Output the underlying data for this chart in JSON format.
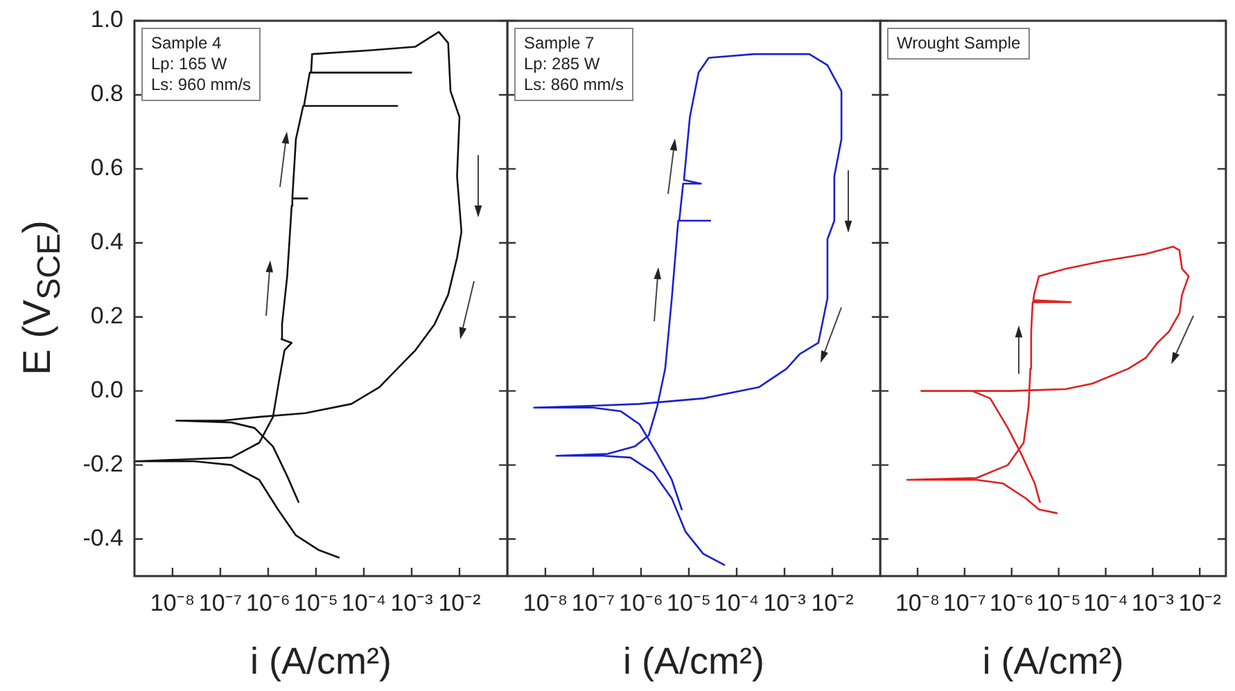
{
  "chart_data": [
    {
      "type": "line",
      "ylabel": "E (V$_{SCE}$)",
      "xlabel": "i (A/cm²)",
      "annotations": [
        "Sample 4",
        "Lp: 165 W",
        "Ls: 960 mm/s"
      ],
      "log": "x",
      "legend": false,
      "grid": false,
      "marker": "none",
      "line_style": "solid",
      "xlim": [
        1.6e-09,
        0.1
      ],
      "ylim": [
        -0.5,
        1.0
      ],
      "xticks": [
        {
          "value": 1e-08,
          "label": "10⁻⁸"
        },
        {
          "value": 1e-07,
          "label": "10⁻⁷"
        },
        {
          "value": 1e-06,
          "label": "10⁻⁶"
        },
        {
          "value": 1e-05,
          "label": "10⁻⁵"
        },
        {
          "value": 0.0001,
          "label": "10⁻⁴"
        },
        {
          "value": 0.001,
          "label": "10⁻³"
        },
        {
          "value": 0.01,
          "label": "10⁻²"
        }
      ],
      "yticks": [
        {
          "value": -0.4,
          "label": "-0.4"
        },
        {
          "value": -0.2,
          "label": "-0.2"
        },
        {
          "value": 0,
          "label": "0.0"
        },
        {
          "value": 0.2,
          "label": "0.2"
        },
        {
          "value": 0.4,
          "label": "0.4"
        },
        {
          "value": 0.6,
          "label": "0.6"
        },
        {
          "value": 0.8,
          "label": "0.8"
        },
        {
          "value": 1.0,
          "label": "1.0"
        }
      ],
      "series": [
        {
          "color": "#111111",
          "x": [
            3e-05,
            1.15e-05,
            3.8e-06,
            1.6e-06,
            6.5e-07,
            1.7e-07,
            2.9e-08,
            1.7e-09,
            1.7e-07,
            6.5e-07,
            1.26e-06,
            1.7e-06,
            2.2e-06,
            3.1e-06,
            1.9e-06,
            1.95e-06,
            2.5e-06,
            3.1e-06,
            3.2e-06,
            6.6e-06,
            3.2e-06,
            3.8e-06,
            5.4e-06,
            0.0005,
            5.6e-06,
            7.4e-06,
            0.00098,
            7.9e-06,
            8.3e-06,
            0.00013,
            0.0012,
            0.0037,
            0.0058,
            0.0065,
            0.01,
            0.0089,
            0.011,
            0.0089,
            0.0058,
            0.003,
            0.0012,
            0.0005,
            0.00021,
            5.5e-05,
            5.9e-06,
            6.5e-07,
            1.1e-07,
            1.2e-08,
            1.7e-07,
            5.2e-07,
            1.26e-06,
            2.5e-06,
            4.3e-06
          ],
          "values": [
            -0.45,
            -0.43,
            -0.39,
            -0.32,
            -0.24,
            -0.2,
            -0.19,
            -0.19,
            -0.18,
            -0.14,
            -0.07,
            0.03,
            0.11,
            0.13,
            0.14,
            0.18,
            0.31,
            0.5,
            0.52,
            0.52,
            0.52,
            0.68,
            0.77,
            0.77,
            0.77,
            0.86,
            0.86,
            0.86,
            0.91,
            0.92,
            0.93,
            0.97,
            0.94,
            0.81,
            0.74,
            0.58,
            0.43,
            0.36,
            0.26,
            0.18,
            0.11,
            0.06,
            0.01,
            -0.035,
            -0.06,
            -0.07,
            -0.08,
            -0.08,
            -0.085,
            -0.1,
            -0.15,
            -0.23,
            -0.3
          ]
        }
      ]
    },
    {
      "type": "line",
      "xlabel": "i (A/cm²)",
      "annotations": [
        "Sample 7",
        "Lp: 285 W",
        "Ls: 860 mm/s"
      ],
      "log": "x",
      "legend": false,
      "grid": false,
      "marker": "none",
      "line_style": "solid",
      "tick_labels": "x",
      "xlim": [
        1.6e-09,
        0.1
      ],
      "ylim": [
        -0.5,
        1.0
      ],
      "xticks": [
        {
          "value": 1e-08,
          "label": "10⁻⁸"
        },
        {
          "value": 1e-07,
          "label": "10⁻⁷"
        },
        {
          "value": 1e-06,
          "label": "10⁻⁶"
        },
        {
          "value": 1e-05,
          "label": "10⁻⁵"
        },
        {
          "value": 0.0001,
          "label": "10⁻⁴"
        },
        {
          "value": 0.001,
          "label": "10⁻³"
        },
        {
          "value": 0.01,
          "label": "10⁻²"
        }
      ],
      "yticks": [
        {
          "value": -0.4,
          "label": null
        },
        {
          "value": -0.2,
          "label": null
        },
        {
          "value": 0,
          "label": null
        },
        {
          "value": 0.2,
          "label": null
        },
        {
          "value": 0.4,
          "label": null
        },
        {
          "value": 0.6,
          "label": null
        },
        {
          "value": 0.8,
          "label": null
        },
        {
          "value": 1.0,
          "label": null
        }
      ],
      "series": [
        {
          "color": "#1a22cc",
          "x": [
            5.5e-05,
            2e-05,
            8.5e-06,
            4.4e-06,
            1.8e-06,
            6e-07,
            1.6e-07,
            1.7e-08,
            2e-07,
            7.4e-07,
            1.45e-06,
            2.2e-06,
            3.2e-06,
            4.4e-06,
            6e-06,
            2.8e-05,
            6.3e-06,
            7.6e-06,
            1.8e-05,
            7.9e-06,
            1.05e-05,
            1.6e-05,
            2.6e-05,
            0.00023,
            0.0033,
            0.0079,
            0.0155,
            0.0155,
            0.011,
            0.011,
            0.0079,
            0.0079,
            0.0051,
            0.0021,
            0.0011,
            0.00029,
            2e-05,
            9.3e-07,
            1e-07,
            5.8e-09,
            1e-07,
            3.8e-07,
            9.3e-07,
            2.2e-06,
            4.4e-06,
            7.1e-06
          ],
          "values": [
            -0.47,
            -0.44,
            -0.38,
            -0.29,
            -0.22,
            -0.18,
            -0.175,
            -0.175,
            -0.17,
            -0.15,
            -0.12,
            -0.04,
            0.06,
            0.25,
            0.46,
            0.46,
            0.46,
            0.56,
            0.56,
            0.57,
            0.74,
            0.86,
            0.9,
            0.91,
            0.91,
            0.88,
            0.81,
            0.68,
            0.58,
            0.46,
            0.41,
            0.25,
            0.13,
            0.1,
            0.06,
            0.01,
            -0.02,
            -0.035,
            -0.04,
            -0.045,
            -0.045,
            -0.055,
            -0.09,
            -0.17,
            -0.24,
            -0.32
          ]
        }
      ]
    },
    {
      "type": "line",
      "xlabel": "i (A/cm²)",
      "annotations": [
        "Wrought Sample"
      ],
      "log": "x",
      "legend": false,
      "grid": false,
      "marker": "none",
      "line_style": "solid",
      "tick_labels": "x",
      "xlim": [
        1.6e-09,
        0.036
      ],
      "ylim": [
        -0.5,
        1.0
      ],
      "xticks": [
        {
          "value": 1e-08,
          "label": "10⁻⁸"
        },
        {
          "value": 1e-07,
          "label": "10⁻⁷"
        },
        {
          "value": 1e-06,
          "label": "10⁻⁶"
        },
        {
          "value": 1e-05,
          "label": "10⁻⁵"
        },
        {
          "value": 0.0001,
          "label": "10⁻⁴"
        },
        {
          "value": 0.001,
          "label": "10⁻³"
        },
        {
          "value": 0.01,
          "label": "10⁻²"
        }
      ],
      "yticks": [
        {
          "value": -0.4,
          "label": null
        },
        {
          "value": -0.2,
          "label": null
        },
        {
          "value": 0,
          "label": null
        },
        {
          "value": 0.2,
          "label": null
        },
        {
          "value": 0.4,
          "label": null
        },
        {
          "value": 0.6,
          "label": null
        },
        {
          "value": 0.8,
          "label": null
        },
        {
          "value": 1.0,
          "label": null
        }
      ],
      "series": [
        {
          "color": "#dd2222",
          "x": [
            9.1e-06,
            3.8e-06,
            2e-06,
            6.6e-07,
            1.8e-07,
            6e-09,
            1.8e-07,
            8.3e-07,
            1.8e-06,
            2.3e-06,
            2.5e-06,
            2.6e-06,
            2.8e-06,
            1.8e-05,
            2.9e-06,
            3e-06,
            3.8e-06,
            1.4e-05,
            8.1e-05,
            0.00072,
            0.0027,
            0.0037,
            0.0042,
            0.0058,
            0.0042,
            0.0037,
            0.0022,
            0.00126,
            0.00072,
            0.0003,
            5.2e-05,
            1.4e-05,
            1e-06,
            1.2e-08,
            1.45e-07,
            3.5e-07,
            8.3e-07,
            1.6e-06,
            3.1e-06,
            4e-06
          ],
          "values": [
            -0.33,
            -0.32,
            -0.29,
            -0.25,
            -0.24,
            -0.24,
            -0.235,
            -0.2,
            -0.14,
            -0.04,
            0.06,
            0.16,
            0.24,
            0.24,
            0.245,
            0.26,
            0.31,
            0.33,
            0.35,
            0.37,
            0.39,
            0.38,
            0.33,
            0.31,
            0.26,
            0.21,
            0.16,
            0.13,
            0.09,
            0.06,
            0.02,
            0.005,
            0.0,
            0.0,
            0.0,
            -0.02,
            -0.1,
            -0.17,
            -0.25,
            -0.3
          ]
        }
      ]
    }
  ]
}
